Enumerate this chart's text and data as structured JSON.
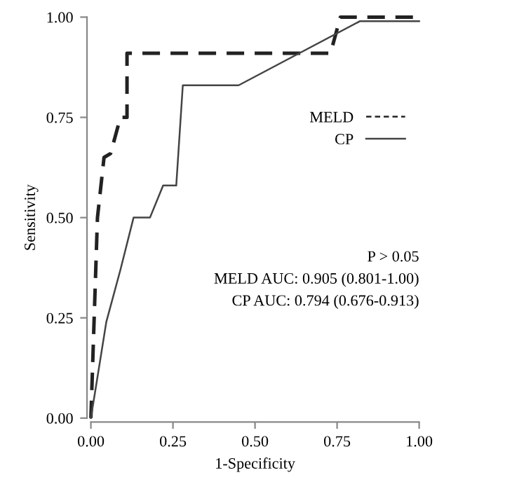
{
  "chart_data": {
    "type": "line",
    "xlabel": "1-Specificity",
    "ylabel": "Sensitivity",
    "xlim": [
      0,
      1
    ],
    "ylim": [
      0,
      1
    ],
    "xticks": [
      {
        "value": 0,
        "label": "0.00"
      },
      {
        "value": 0.25,
        "label": "0.25"
      },
      {
        "value": 0.5,
        "label": "0.50"
      },
      {
        "value": 0.75,
        "label": "0.75"
      },
      {
        "value": 1,
        "label": "1.00"
      }
    ],
    "yticks": [
      {
        "value": 0,
        "label": "0.00"
      },
      {
        "value": 0.25,
        "label": "0.25"
      },
      {
        "value": 0.5,
        "label": "0.50"
      },
      {
        "value": 0.75,
        "label": "0.75"
      },
      {
        "value": 1,
        "label": "1.00"
      }
    ],
    "grid": false,
    "legend": "right",
    "marker": "none",
    "series": [
      {
        "name": "MELD",
        "color": "#222222",
        "line_style": "dashed",
        "x": [
          0,
          0.02,
          0.04,
          0.06,
          0.09,
          0.11,
          0.11,
          0.73,
          0.76,
          1.0
        ],
        "values": [
          0,
          0.5,
          0.65,
          0.66,
          0.75,
          0.75,
          0.91,
          0.91,
          1.0,
          1.0
        ]
      },
      {
        "name": "CP",
        "color": "#444444",
        "line_style": "solid",
        "x": [
          0,
          0.047,
          0.09,
          0.13,
          0.18,
          0.22,
          0.26,
          0.28,
          0.45,
          0.82,
          1.0
        ],
        "values": [
          0,
          0.24,
          0.37,
          0.5,
          0.5,
          0.58,
          0.58,
          0.83,
          0.83,
          0.99,
          0.99
        ]
      }
    ],
    "annotations": [
      "P > 0.05",
      "MELD AUC: 0.905 (0.801-1.00)",
      "CP AUC: 0.794 (0.676-0.913)"
    ]
  }
}
